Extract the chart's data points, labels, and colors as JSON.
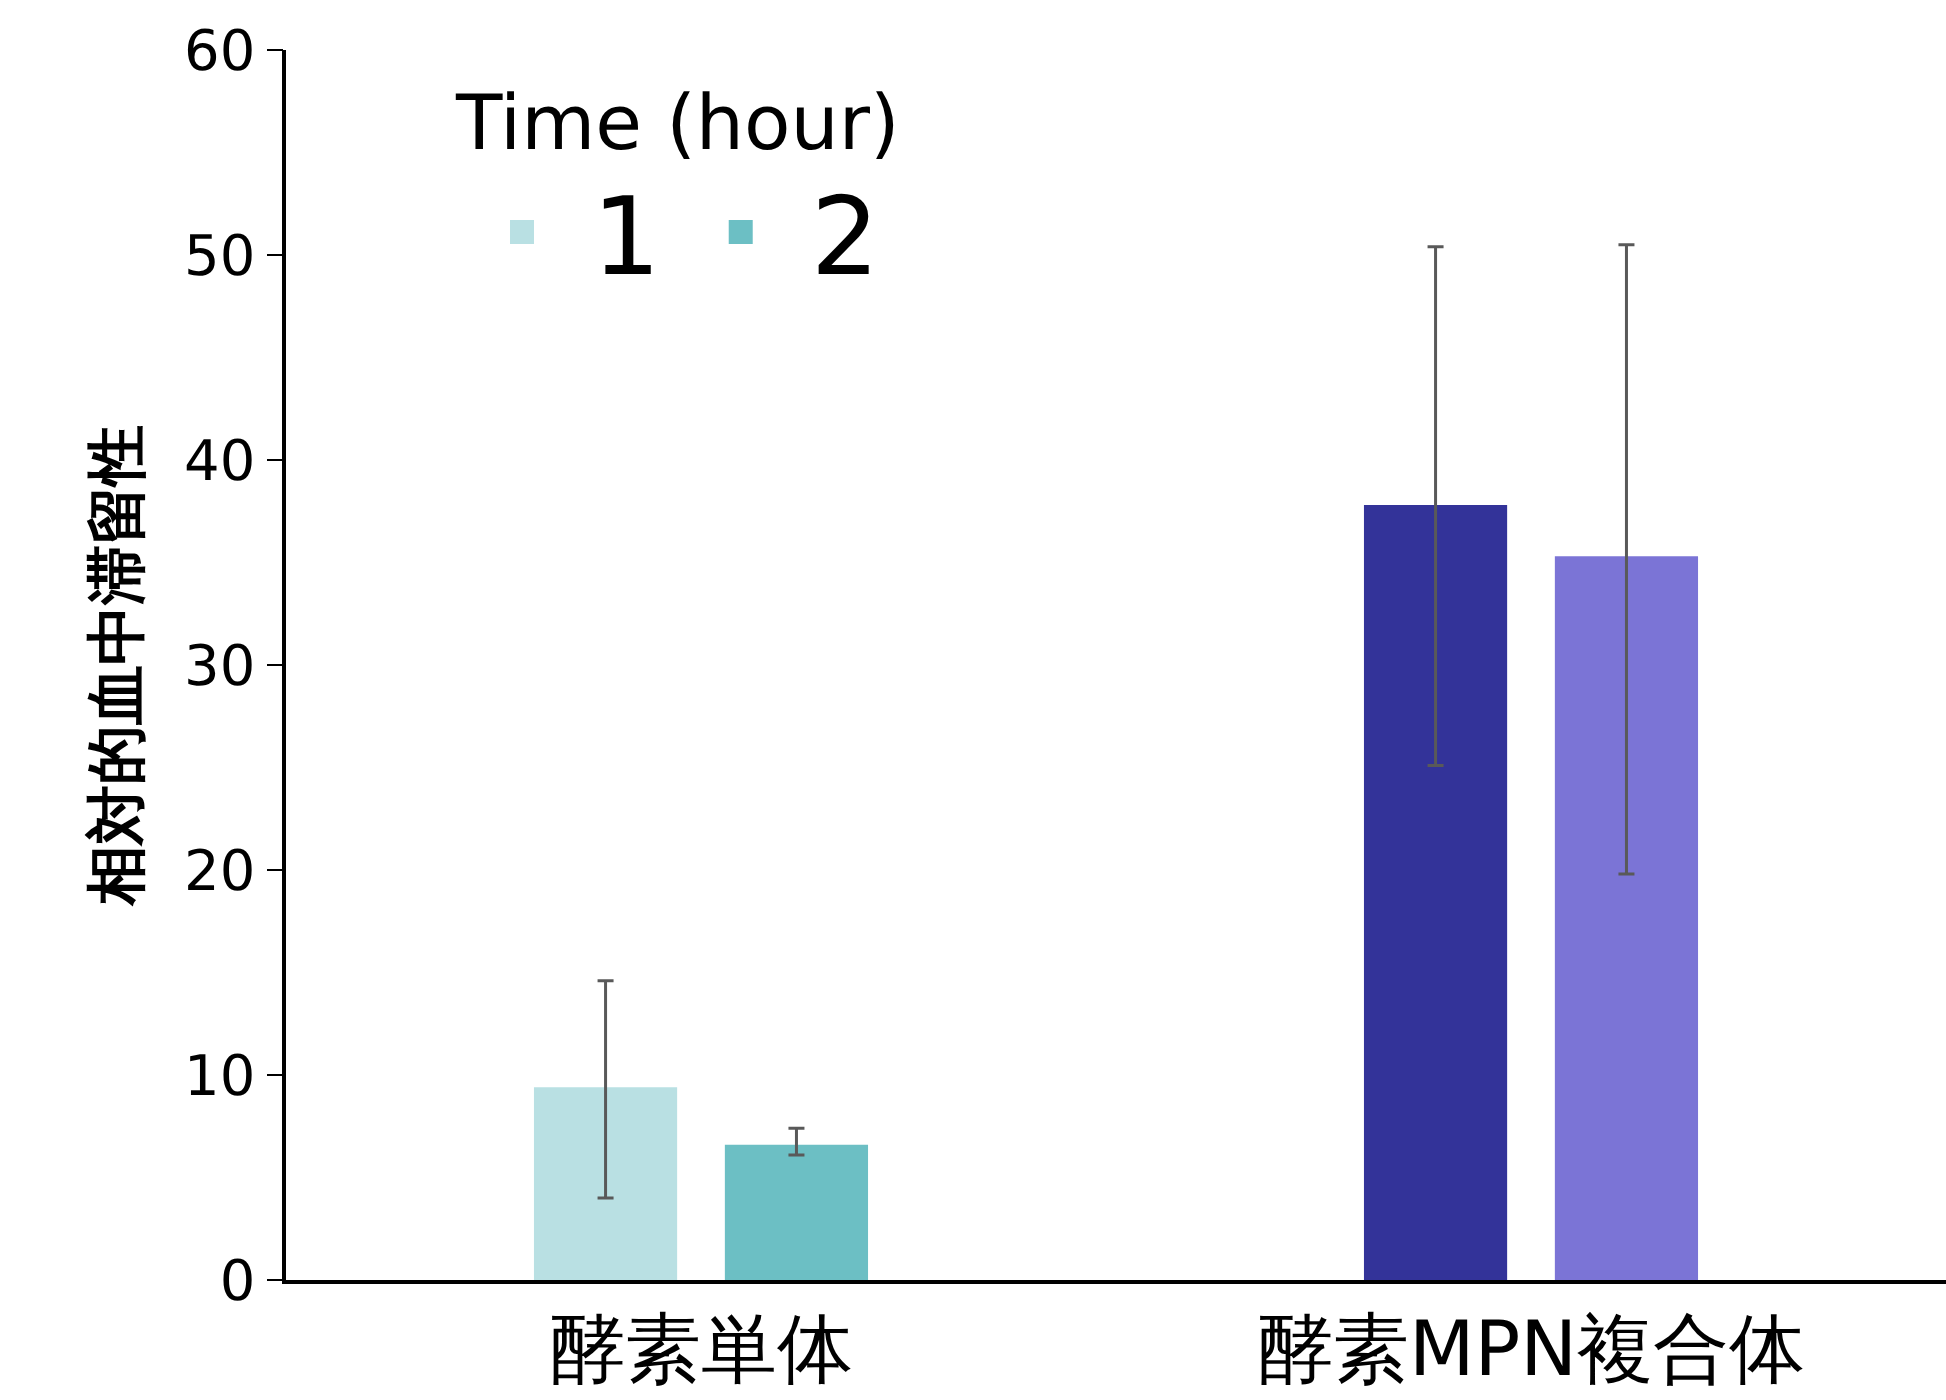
{
  "chart_data": {
    "type": "bar",
    "ylabel": "相対的血中滞留性",
    "legend_title": "Time (hour)",
    "categories": [
      "酵素単体",
      "酵素MPN複合体"
    ],
    "series": [
      {
        "name": "1",
        "colors": [
          "#b9e0e3",
          "#333399"
        ],
        "values": [
          9.4,
          37.8
        ],
        "errors": [
          [
            4.0,
            14.6
          ],
          [
            25.1,
            50.4
          ]
        ]
      },
      {
        "name": "2",
        "colors": [
          "#6cbfc4",
          "#7b74d6"
        ],
        "values": [
          6.6,
          35.3
        ],
        "errors": [
          [
            6.1,
            7.4
          ],
          [
            19.8,
            50.5
          ]
        ]
      }
    ],
    "ylim": [
      0,
      60
    ],
    "yticks": [
      0,
      10,
      20,
      30,
      40,
      50,
      60
    ],
    "grid": false,
    "legend": "top left"
  }
}
